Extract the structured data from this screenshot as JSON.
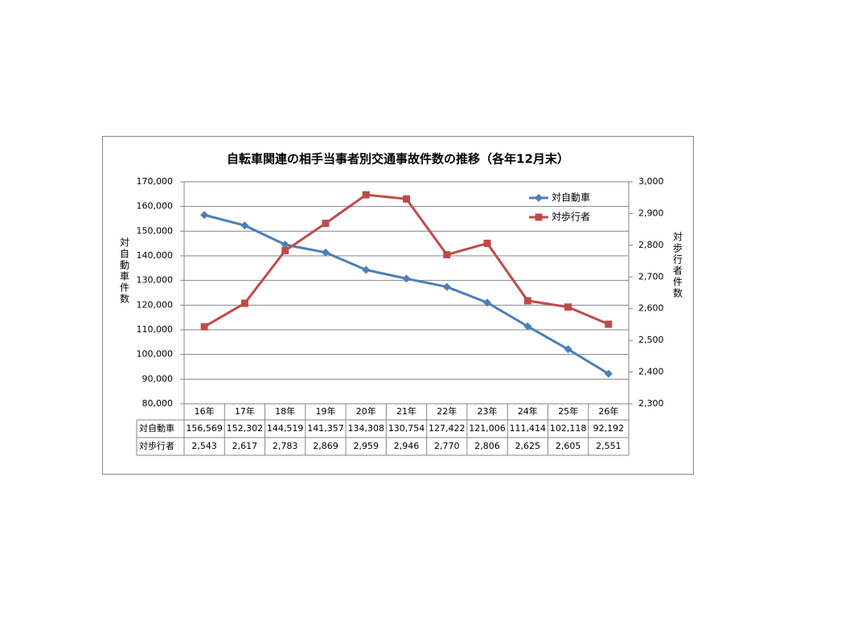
{
  "chart_data": {
    "type": "line",
    "title": "自転車関連の相手当事者別交通事故件数の推移（各年12月末）",
    "y_label": "対自動車件数",
    "y2_label": "対歩行者件数",
    "categories": [
      "16年",
      "17年",
      "18年",
      "19年",
      "20年",
      "21年",
      "22年",
      "23年",
      "24年",
      "25年",
      "26年"
    ],
    "series": [
      {
        "name": "対自動車",
        "color": "#4a7ebb",
        "marker": "diamond",
        "values": [
          156569,
          152302,
          144519,
          141357,
          134308,
          130754,
          127422,
          121006,
          111414,
          102118,
          92192
        ],
        "value_labels": [
          "156,569",
          "152,302",
          "144,519",
          "141,357",
          "134,308",
          "130,754",
          "127,422",
          "121,006",
          "111,414",
          "102,118",
          "92,192"
        ]
      },
      {
        "name": "対歩行者",
        "color": "#be4b48",
        "marker": "square",
        "axis": "y2",
        "values": [
          2543,
          2617,
          2783,
          2869,
          2959,
          2946,
          2770,
          2806,
          2625,
          2605,
          2551
        ],
        "value_labels": [
          "2,543",
          "2,617",
          "2,783",
          "2,869",
          "2,959",
          "2,946",
          "2,770",
          "2,806",
          "2,625",
          "2,605",
          "2,551"
        ]
      }
    ],
    "ylim": [
      80000,
      170000
    ],
    "yticks": [
      {
        "value": 80000,
        "label": "80,000"
      },
      {
        "value": 90000,
        "label": "90,000"
      },
      {
        "value": 100000,
        "label": "100,000"
      },
      {
        "value": 110000,
        "label": "110,000"
      },
      {
        "value": 120000,
        "label": "120,000"
      },
      {
        "value": 130000,
        "label": "130,000"
      },
      {
        "value": 140000,
        "label": "140,000"
      },
      {
        "value": 150000,
        "label": "150,000"
      },
      {
        "value": 160000,
        "label": "160,000"
      },
      {
        "value": 170000,
        "label": "170,000"
      }
    ],
    "y2lim": [
      2300,
      3000
    ],
    "y2ticks": [
      {
        "value": 2300,
        "label": "2,300"
      },
      {
        "value": 2400,
        "label": "2,400"
      },
      {
        "value": 2500,
        "label": "2,500"
      },
      {
        "value": 2600,
        "label": "2,600"
      },
      {
        "value": 2700,
        "label": "2,700"
      },
      {
        "value": 2800,
        "label": "2,800"
      },
      {
        "value": 2900,
        "label": "2,900"
      },
      {
        "value": 3000,
        "label": "3,000"
      }
    ],
    "grid": true
  }
}
